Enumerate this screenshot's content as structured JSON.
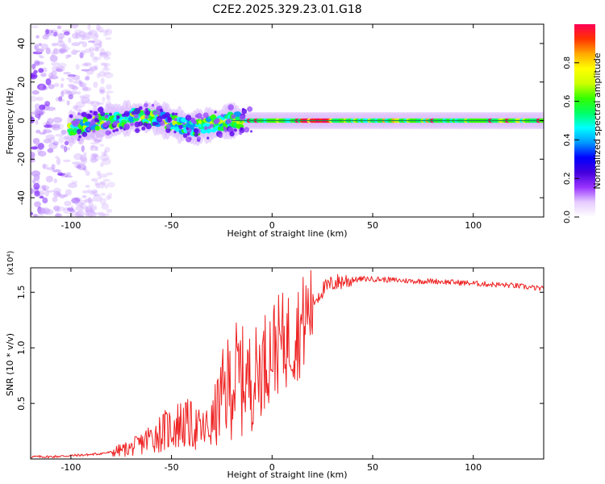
{
  "figure_title": "C2E2.2025.329.23.01.G18",
  "chart_data": [
    {
      "type": "heatmap",
      "xlabel": "Height of straight line (km)",
      "ylabel": "Frequency (Hz)",
      "xlim": [
        -120,
        135
      ],
      "ylim": [
        -50,
        50
      ],
      "xticks": [
        -100,
        -50,
        0,
        50,
        100
      ],
      "xtick_labels": [
        "-100",
        "-50",
        "0",
        "50",
        "100"
      ],
      "yticks": [
        -40,
        -20,
        0,
        20,
        40
      ],
      "ytick_labels": [
        "-40",
        "-20",
        "0",
        "20",
        "40"
      ],
      "colorbar": {
        "label": "Normalized spectral amplitude",
        "range": [
          0,
          1
        ],
        "ticks": [
          0.0,
          0.2,
          0.4,
          0.6,
          0.8
        ],
        "tick_labels": [
          "0.0",
          "0.2",
          "0.4",
          "0.6",
          "0.8"
        ],
        "colormap": [
          "#ffffff",
          "#e6ccff",
          "#9933ff",
          "#4400dd",
          "#0000ff",
          "#0099ff",
          "#00ffff",
          "#00ff66",
          "#33ff00",
          "#ccff00",
          "#ffff00",
          "#ffaa00",
          "#ff3300",
          "#ff0055"
        ]
      },
      "ridge": {
        "x": [
          -100,
          -90,
          -80,
          -70,
          -60,
          -50,
          -40,
          -30,
          -20,
          -10,
          0,
          10,
          20,
          40,
          60,
          80,
          100,
          120,
          135
        ],
        "freq": [
          -4,
          -2,
          0,
          1.5,
          2,
          -1,
          -4,
          -2,
          0,
          0,
          0,
          0,
          0,
          0,
          0,
          0,
          0,
          0,
          0
        ]
      },
      "grid": false
    },
    {
      "type": "line",
      "xlabel": "Height of straight line (km)",
      "ylabel": "SNR (10 * v/v)",
      "y_multiplier": "(x10⁴)",
      "xlim": [
        -120,
        135
      ],
      "ylim": [
        0,
        1.72
      ],
      "xticks": [
        -100,
        -50,
        0,
        50,
        100
      ],
      "xtick_labels": [
        "-100",
        "-50",
        "0",
        "50",
        "100"
      ],
      "yticks": [
        0.5,
        1.0,
        1.5
      ],
      "ytick_labels": [
        "0.5",
        "1.0",
        "1.5"
      ],
      "series": [
        {
          "color": "#ee2222",
          "x": [
            -120,
            -110,
            -100,
            -90,
            -80,
            -70,
            -65,
            -60,
            -55,
            -50,
            -45,
            -40,
            -35,
            -30,
            -25,
            -20,
            -15,
            -10,
            -5,
            0,
            5,
            10,
            15,
            20,
            25,
            30,
            35,
            40,
            45,
            50,
            60,
            70,
            80,
            90,
            100,
            110,
            120,
            130,
            135
          ],
          "y": [
            0.02,
            0.02,
            0.03,
            0.04,
            0.06,
            0.1,
            0.14,
            0.2,
            0.24,
            0.28,
            0.32,
            0.3,
            0.25,
            0.3,
            0.55,
            0.7,
            0.75,
            0.7,
            0.85,
            1.0,
            1.05,
            1.1,
            1.2,
            1.4,
            1.52,
            1.58,
            1.6,
            1.61,
            1.62,
            1.62,
            1.61,
            1.6,
            1.6,
            1.59,
            1.58,
            1.57,
            1.56,
            1.54,
            1.53
          ]
        }
      ],
      "grid": false
    }
  ]
}
